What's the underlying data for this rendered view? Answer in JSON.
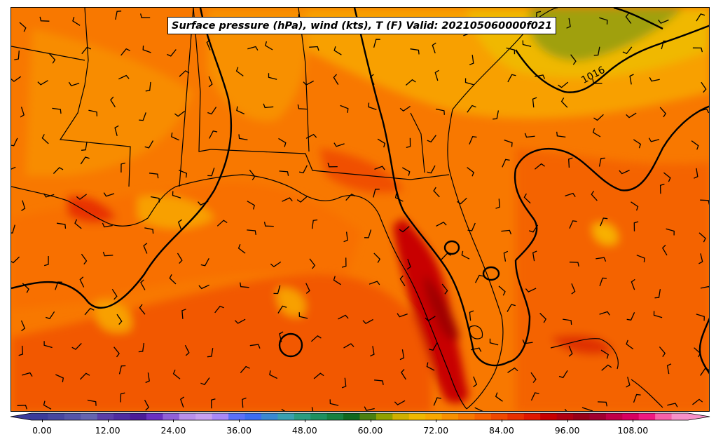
{
  "title": "Surface pressure (hPa), wind (kts), T (F) Valid: 202105060000f021",
  "isobar_label": "1016",
  "colorbar": {
    "ticks": [
      "0.00",
      "12.00",
      "24.00",
      "36.00",
      "48.00",
      "60.00",
      "72.00",
      "84.00",
      "96.00",
      "108.00"
    ],
    "colors": [
      "#3b3b9b",
      "#4646a0",
      "#5454a8",
      "#6464b0",
      "#5a3ea8",
      "#4e2ca0",
      "#4a1c98",
      "#6a30c0",
      "#9060d8",
      "#b890ec",
      "#c8a0f0",
      "#a888f8",
      "#5a70f8",
      "#3c6cf0",
      "#3a88d0",
      "#3aa0b0",
      "#2a9c80",
      "#1e9060",
      "#168040",
      "#106820",
      "#4a8010",
      "#90a000",
      "#d0b000",
      "#f0b800",
      "#f8a800",
      "#f89000",
      "#f87800",
      "#f86000",
      "#f04800",
      "#e83000",
      "#e01800",
      "#c80000",
      "#b00010",
      "#980018",
      "#a00030",
      "#c00048",
      "#d80060",
      "#f01880",
      "#f860a8",
      "#f890c8"
    ]
  },
  "legend_ranges": {
    "min": 0,
    "max": 120,
    "step": 3
  }
}
